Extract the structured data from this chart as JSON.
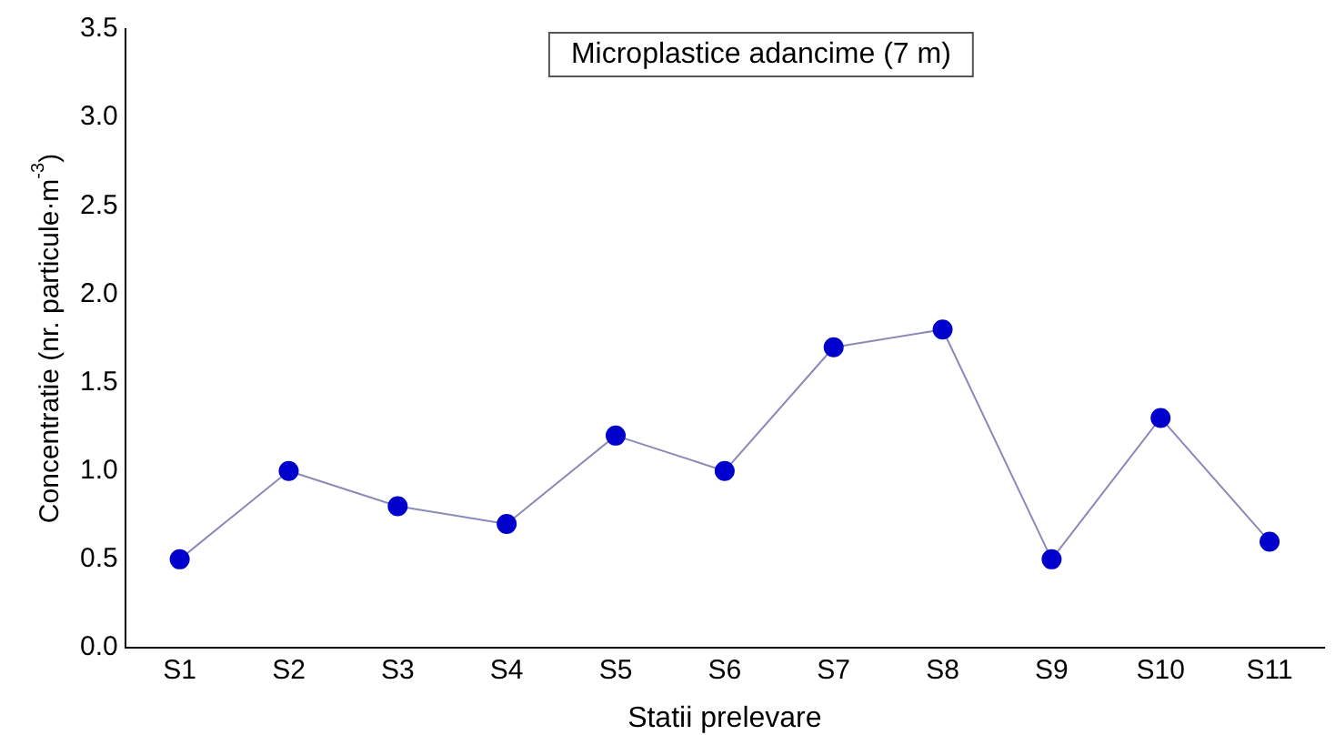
{
  "chart_data": {
    "type": "line",
    "title": "Microplastice adancime (7 m)",
    "xlabel": "Statii prelevare",
    "ylabel": "Concentratie (nr. particule·m$^{-3}$)",
    "categories": [
      "S1",
      "S2",
      "S3",
      "S4",
      "S5",
      "S6",
      "S7",
      "S8",
      "S9",
      "S10",
      "S11"
    ],
    "series": [
      {
        "color": "#0000cc",
        "values": [
          0.5,
          1.0,
          0.8,
          0.7,
          1.2,
          1.0,
          1.7,
          1.8,
          0.5,
          1.3,
          0.6
        ]
      }
    ],
    "ylim": [
      0,
      3.5
    ],
    "yticks": [
      {
        "value": 0,
        "label": "0.0"
      },
      {
        "value": 0.5,
        "label": "0.5"
      },
      {
        "value": 1,
        "label": "1.0"
      },
      {
        "value": 1.5,
        "label": "1.5"
      },
      {
        "value": 2,
        "label": "2.0"
      },
      {
        "value": 2.5,
        "label": "2.5"
      },
      {
        "value": 3,
        "label": "3.0"
      },
      {
        "value": 3.5,
        "label": "3.5"
      }
    ],
    "grid": false,
    "legend": false,
    "marker": "circle",
    "line_style": "solid"
  }
}
